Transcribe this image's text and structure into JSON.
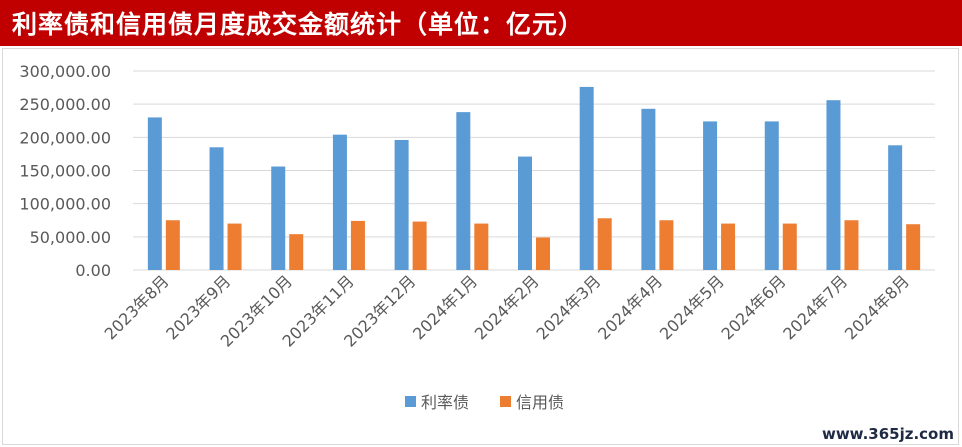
{
  "title": "利率债和信用债月度成交金额统计（单位：亿元）",
  "watermark": "www.365jz.com",
  "colors": {
    "title_bg": "#c00000",
    "rate": "#5b9bd5",
    "credit": "#ed7d31",
    "grid": "#d9d9d9",
    "text": "#595959"
  },
  "chart_data": {
    "type": "bar",
    "title": "利率债和信用债月度成交金额统计（单位：亿元）",
    "xlabel": "",
    "ylabel": "",
    "ylim": [
      0,
      300000
    ],
    "yticks": [
      "0.00",
      "50,000.00",
      "100,000.00",
      "150,000.00",
      "200,000.00",
      "250,000.00",
      "300,000.00"
    ],
    "ytick_values": [
      0,
      50000,
      100000,
      150000,
      200000,
      250000,
      300000
    ],
    "grid": true,
    "legend_position": "bottom",
    "categories": [
      "2023年8月",
      "2023年9月",
      "2023年10月",
      "2023年11月",
      "2023年12月",
      "2024年1月",
      "2024年2月",
      "2024年3月",
      "2024年4月",
      "2024年5月",
      "2024年6月",
      "2024年7月",
      "2024年8月"
    ],
    "series": [
      {
        "name": "利率债",
        "color": "#5b9bd5",
        "values": [
          230000,
          185000,
          156000,
          204000,
          196000,
          238000,
          171000,
          276000,
          243000,
          224000,
          224000,
          256000,
          188000
        ]
      },
      {
        "name": "信用债",
        "color": "#ed7d31",
        "values": [
          75000,
          70000,
          54000,
          74000,
          73000,
          70000,
          49000,
          78000,
          75000,
          70000,
          70000,
          75000,
          69000
        ]
      }
    ]
  }
}
